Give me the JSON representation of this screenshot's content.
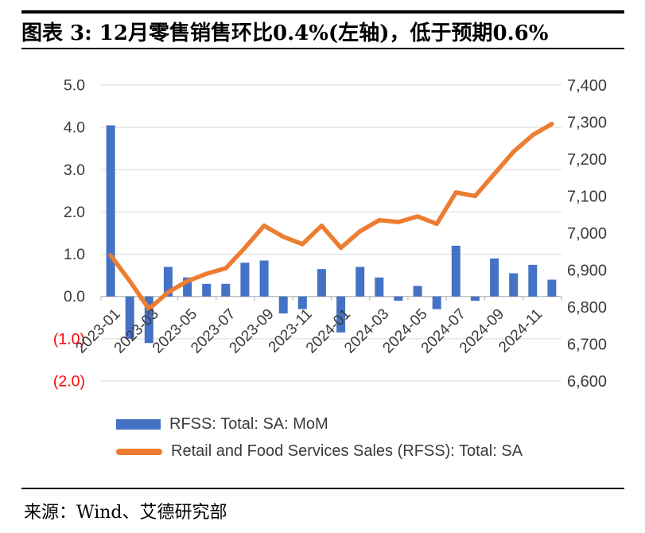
{
  "header": {
    "title": "图表 3: 12月零售销售环比0.4%(左轴)，低于预期0.6%"
  },
  "footer": {
    "source": "来源：Wind、艾德研究部"
  },
  "legend": [
    {
      "label": "RFSS: Total: SA: MoM",
      "swatch": "bar",
      "color": "#4472C4"
    },
    {
      "label": "Retail and Food Services Sales (RFSS): Total: SA",
      "swatch": "line",
      "color": "#ED7D31"
    }
  ],
  "chart_data": {
    "type": "bar",
    "subtype": "combo-bar-line-dual-axis",
    "categories": [
      "2023-01",
      "2023-02",
      "2023-03",
      "2023-04",
      "2023-05",
      "2023-06",
      "2023-07",
      "2023-08",
      "2023-09",
      "2023-10",
      "2023-11",
      "2023-12",
      "2024-01",
      "2024-02",
      "2024-03",
      "2024-04",
      "2024-05",
      "2024-06",
      "2024-07",
      "2024-08",
      "2024-09",
      "2024-10",
      "2024-11",
      "2024-12"
    ],
    "series": [
      {
        "name": "RFSS: Total: SA: MoM",
        "type": "bar",
        "axis": "left",
        "color": "#4472C4",
        "values": [
          4.05,
          -1.0,
          -1.1,
          0.7,
          0.45,
          0.3,
          0.3,
          0.8,
          0.85,
          -0.4,
          -0.3,
          0.65,
          -0.85,
          0.7,
          0.45,
          -0.1,
          0.25,
          -0.3,
          1.2,
          -0.1,
          0.9,
          0.55,
          0.75,
          0.4
        ]
      },
      {
        "name": "Retail and Food Services Sales (RFSS): Total: SA",
        "type": "line",
        "axis": "right",
        "color": "#ED7D31",
        "values": [
          6940,
          6870,
          6795,
          6840,
          6870,
          6890,
          6905,
          6960,
          7020,
          6990,
          6970,
          7020,
          6960,
          7005,
          7035,
          7030,
          7045,
          7025,
          7110,
          7100,
          7160,
          7220,
          7265,
          7295
        ]
      }
    ],
    "left_axis": {
      "min": -2.0,
      "max": 5.0,
      "ticks": [
        "5.0",
        "4.0",
        "3.0",
        "2.0",
        "1.0",
        "0.0",
        "(1.0)",
        "(2.0)"
      ],
      "tick_color": "#3b3b3b",
      "negative_tick_color": "#FF0000"
    },
    "right_axis": {
      "min": 6600,
      "max": 7400,
      "ticks": [
        "7,400",
        "7,300",
        "7,200",
        "7,100",
        "7,000",
        "6,900",
        "6,800",
        "6,700",
        "6,600"
      ],
      "tick_color": "#3b3b3b"
    },
    "x_axis": {
      "visible_labels": [
        "2023-01",
        "2023-03",
        "2023-05",
        "2023-07",
        "2023-09",
        "2023-11",
        "2024-01",
        "2024-03",
        "2024-05",
        "2024-07",
        "2024-09",
        "2024-11"
      ],
      "label_rotation_deg": -45,
      "label_color": "#3b3b3b"
    },
    "grid": true,
    "grid_color": "#D9D9D9",
    "axis_line_color": "#BFBFBF",
    "legend_position": "bottom",
    "title": "图表 3: 12月零售销售环比0.4%(左轴)，低于预期0.6%",
    "xlabel": "",
    "ylabel": ""
  }
}
